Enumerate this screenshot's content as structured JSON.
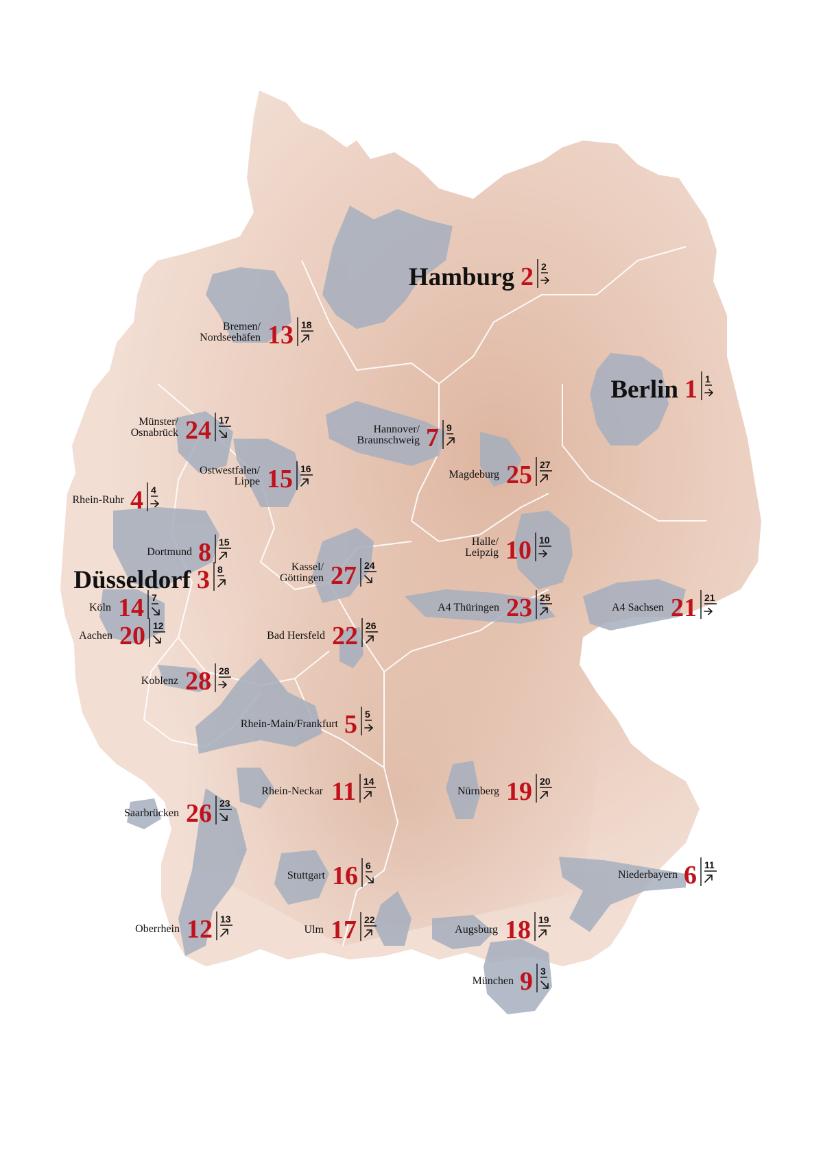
{
  "colors": {
    "land": "#efd5c9",
    "land_dark": "#d9b09a",
    "metro_area": "#a8b1bf",
    "rank_red": "#c0121b",
    "border": "#ffffff"
  },
  "regions": [
    {
      "id": "berlin",
      "label": [
        "Berlin"
      ],
      "rank": "1",
      "prev": "1",
      "trend": "right",
      "big": true
    },
    {
      "id": "hamburg",
      "label": [
        "Hamburg"
      ],
      "rank": "2",
      "prev": "2",
      "trend": "right",
      "big": true
    },
    {
      "id": "duesseldorf",
      "label": [
        "Düsseldorf"
      ],
      "rank": "3",
      "prev": "8",
      "trend": "up",
      "big": true
    },
    {
      "id": "rhein-ruhr",
      "label": [
        "Rhein-Ruhr"
      ],
      "rank": "4",
      "prev": "4",
      "trend": "right"
    },
    {
      "id": "rhein-main",
      "label": [
        "Rhein-Main/Frankfurt"
      ],
      "rank": "5",
      "prev": "5",
      "trend": "right"
    },
    {
      "id": "niederbayern",
      "label": [
        "Niederbayern"
      ],
      "rank": "6",
      "prev": "11",
      "trend": "up"
    },
    {
      "id": "hannover",
      "label": [
        "Hannover/",
        "Braunschweig"
      ],
      "rank": "7",
      "prev": "9",
      "trend": "up"
    },
    {
      "id": "dortmund",
      "label": [
        "Dortmund"
      ],
      "rank": "8",
      "prev": "15",
      "trend": "up"
    },
    {
      "id": "muenchen",
      "label": [
        "München"
      ],
      "rank": "9",
      "prev": "3",
      "trend": "down"
    },
    {
      "id": "halle",
      "label": [
        "Halle/",
        "Leipzig"
      ],
      "rank": "10",
      "prev": "10",
      "trend": "right"
    },
    {
      "id": "rhein-neckar",
      "label": [
        "Rhein-Neckar"
      ],
      "rank": "11",
      "prev": "14",
      "trend": "up"
    },
    {
      "id": "oberrhein",
      "label": [
        "Oberrhein"
      ],
      "rank": "12",
      "prev": "13",
      "trend": "up"
    },
    {
      "id": "bremen",
      "label": [
        "Bremen/",
        "Nordseehäfen"
      ],
      "rank": "13",
      "prev": "18",
      "trend": "up"
    },
    {
      "id": "koeln",
      "label": [
        "Köln"
      ],
      "rank": "14",
      "prev": "7",
      "trend": "down"
    },
    {
      "id": "ostwestfalen",
      "label": [
        "Ostwestfalen/",
        "Lippe"
      ],
      "rank": "15",
      "prev": "16",
      "trend": "up"
    },
    {
      "id": "stuttgart",
      "label": [
        "Stuttgart"
      ],
      "rank": "16",
      "prev": "6",
      "trend": "down"
    },
    {
      "id": "ulm",
      "label": [
        "Ulm"
      ],
      "rank": "17",
      "prev": "22",
      "trend": "up"
    },
    {
      "id": "augsburg",
      "label": [
        "Augsburg"
      ],
      "rank": "18",
      "prev": "19",
      "trend": "up"
    },
    {
      "id": "nuernberg",
      "label": [
        "Nürnberg"
      ],
      "rank": "19",
      "prev": "20",
      "trend": "up"
    },
    {
      "id": "aachen",
      "label": [
        "Aachen"
      ],
      "rank": "20",
      "prev": "12",
      "trend": "down"
    },
    {
      "id": "a4-sachsen",
      "label": [
        "A4 Sachsen"
      ],
      "rank": "21",
      "prev": "21",
      "trend": "right"
    },
    {
      "id": "bad-hersfeld",
      "label": [
        "Bad Hersfeld"
      ],
      "rank": "22",
      "prev": "26",
      "trend": "up"
    },
    {
      "id": "a4-thueringen",
      "label": [
        "A4 Thüringen"
      ],
      "rank": "23",
      "prev": "25",
      "trend": "up"
    },
    {
      "id": "muenster",
      "label": [
        "Münster/",
        "Osnabrück"
      ],
      "rank": "24",
      "prev": "17",
      "trend": "down"
    },
    {
      "id": "magdeburg",
      "label": [
        "Magdeburg"
      ],
      "rank": "25",
      "prev": "27",
      "trend": "up"
    },
    {
      "id": "saarbruecken",
      "label": [
        "Saarbrücken"
      ],
      "rank": "26",
      "prev": "23",
      "trend": "down"
    },
    {
      "id": "kassel",
      "label": [
        "Kassel/",
        "Göttingen"
      ],
      "rank": "27",
      "prev": "24",
      "trend": "down"
    },
    {
      "id": "koblenz",
      "label": [
        "Koblenz"
      ],
      "rank": "28",
      "prev": "28",
      "trend": "right"
    }
  ]
}
